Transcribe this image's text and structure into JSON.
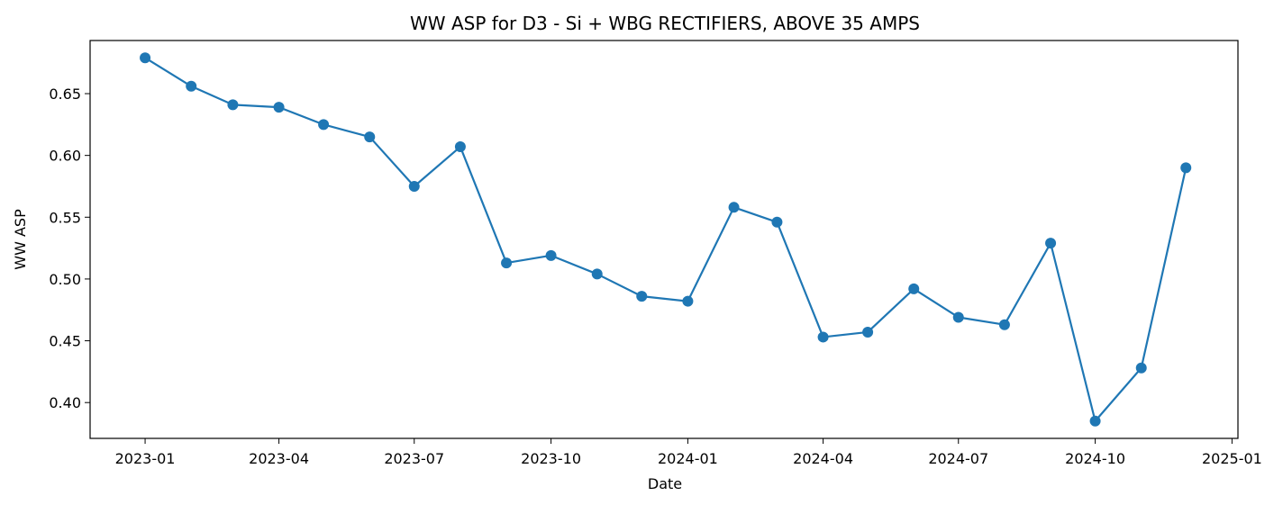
{
  "chart_data": {
    "type": "line",
    "title": "WW ASP for D3 - Si + WBG RECTIFIERS, ABOVE 35 AMPS",
    "xlabel": "Date",
    "ylabel": "WW ASP",
    "x_tick_labels": [
      "2023-01",
      "2023-04",
      "2023-07",
      "2023-10",
      "2024-01",
      "2024-04",
      "2024-07",
      "2024-10",
      "2025-01"
    ],
    "y_tick_labels": [
      "0.40",
      "0.45",
      "0.50",
      "0.55",
      "0.60",
      "0.65"
    ],
    "y_ticks": [
      0.4,
      0.45,
      0.5,
      0.55,
      0.6,
      0.65
    ],
    "x_ticks": [
      "2023-01",
      "2023-04",
      "2023-07",
      "2023-10",
      "2024-01",
      "2024-04",
      "2024-07",
      "2024-10",
      "2025-01"
    ],
    "xlim": [
      "2022-11-25",
      "2025-01-05"
    ],
    "ylim": [
      0.371,
      0.693
    ],
    "grid": false,
    "marker": "circle",
    "color": "#1f77b4",
    "series": [
      {
        "x": [
          "2023-01",
          "2023-02",
          "2023-03",
          "2023-04",
          "2023-05",
          "2023-06",
          "2023-07",
          "2023-08",
          "2023-09",
          "2023-10",
          "2023-11",
          "2023-12",
          "2024-01",
          "2024-02",
          "2024-03",
          "2024-04",
          "2024-05",
          "2024-06",
          "2024-07",
          "2024-08",
          "2024-09",
          "2024-10",
          "2024-11",
          "2024-12"
        ],
        "values": [
          0.679,
          0.656,
          0.641,
          0.639,
          0.625,
          0.615,
          0.575,
          0.607,
          0.513,
          0.519,
          0.504,
          0.486,
          0.482,
          0.558,
          0.546,
          0.453,
          0.457,
          0.492,
          0.469,
          0.463,
          0.529,
          0.385,
          0.428,
          0.59
        ]
      }
    ]
  }
}
